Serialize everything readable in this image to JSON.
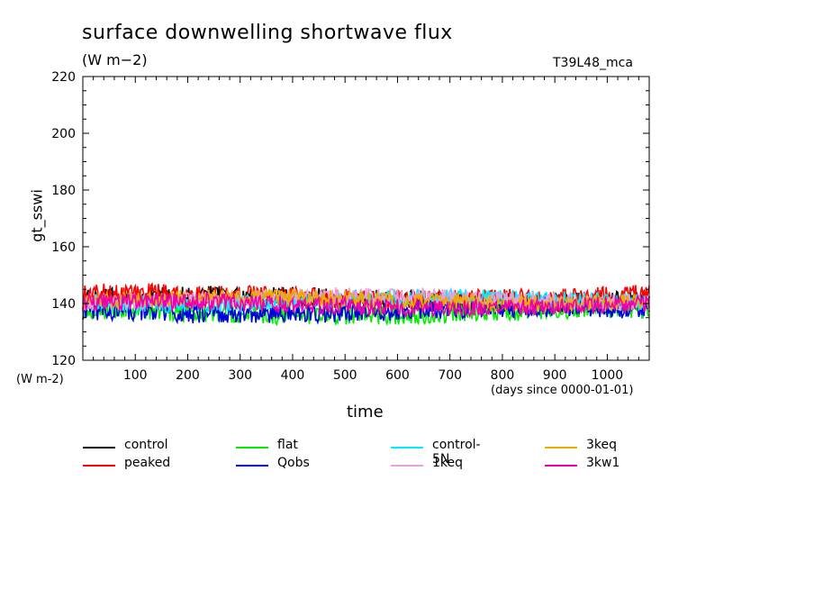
{
  "chart_data": {
    "type": "line",
    "title": "surface downwelling shortwave flux",
    "units": "(W m−2)",
    "run_label": "T39L48_mca",
    "ylabel": "gt_sswi",
    "yunit": "(W m-2)",
    "xlabel": "time",
    "xunit": "(days since 0000-01-01)",
    "ylim": [
      120,
      220
    ],
    "xlim": [
      0,
      1080
    ],
    "yticks": [
      "120",
      "140",
      "160",
      "180",
      "200",
      "220"
    ],
    "xticks": [
      "100",
      "200",
      "300",
      "400",
      "500",
      "600",
      "700",
      "800",
      "900",
      "1000"
    ],
    "x_tick_values": [
      100,
      200,
      300,
      400,
      500,
      600,
      700,
      800,
      900,
      1000
    ],
    "y_tick_values": [
      120,
      140,
      160,
      180,
      200,
      220
    ],
    "legend_position": "bottom",
    "series": [
      {
        "name": "control",
        "color": "#000000",
        "mean": 141.5,
        "amp": 3.5
      },
      {
        "name": "peaked",
        "color": "#ff0000",
        "mean": 142.5,
        "amp": 3.5
      },
      {
        "name": "flat",
        "color": "#00ee00",
        "mean": 137.0,
        "amp": 3.5
      },
      {
        "name": "Qobs",
        "color": "#0000dd",
        "mean": 137.5,
        "amp": 3.5
      },
      {
        "name": "control-5N",
        "color": "#00eeff",
        "mean": 141.0,
        "amp": 3.0
      },
      {
        "name": "1keq",
        "color": "#e8a0e0",
        "mean": 141.5,
        "amp": 3.0
      },
      {
        "name": "3keq",
        "color": "#eeaa00",
        "mean": 141.0,
        "amp": 3.0
      },
      {
        "name": "3kw1",
        "color": "#ee00aa",
        "mean": 139.5,
        "amp": 3.0
      }
    ]
  }
}
